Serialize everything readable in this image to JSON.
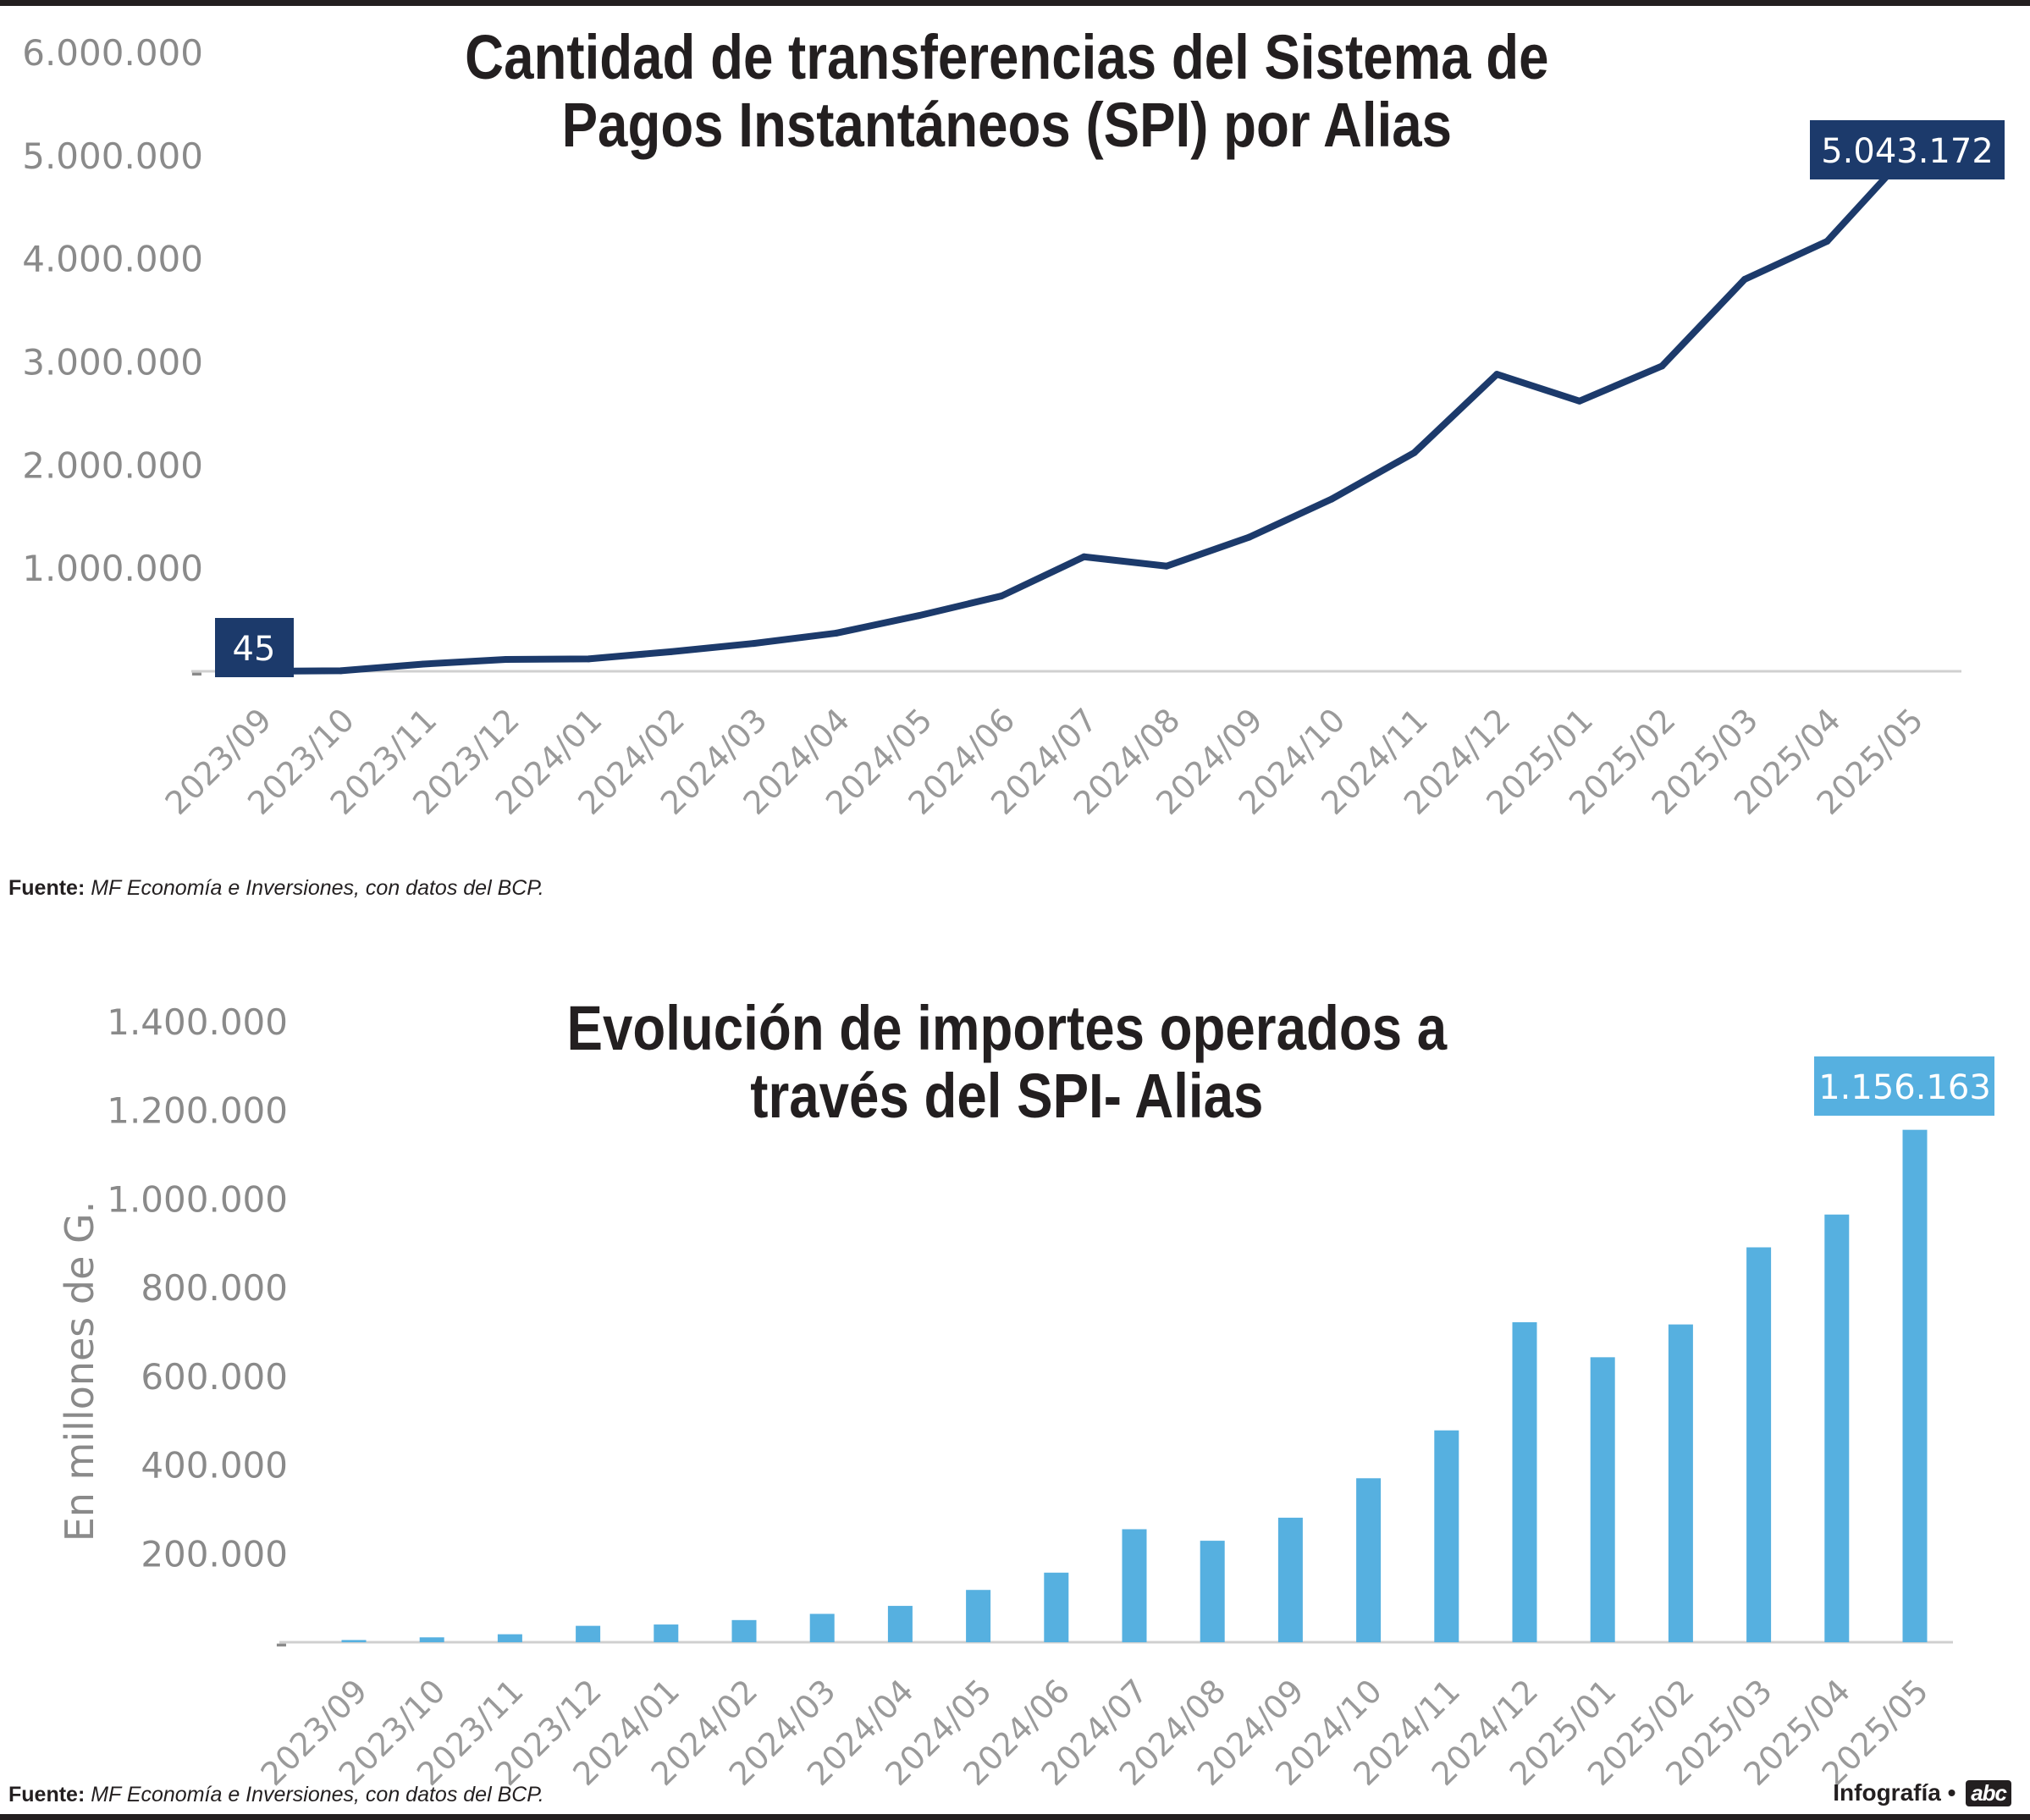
{
  "charts": [
    {
      "title_lines": [
        "Cantidad de transferencias del Sistema de",
        "Pagos Instantáneos (SPI) por Alias"
      ],
      "source_label": "Fuente:",
      "source_text": "MF Economía e Inversiones, con datos del BCP."
    },
    {
      "title_lines": [
        "Evolución de importes operados a",
        "través del SPI- Alias"
      ],
      "source_label": "Fuente:",
      "source_text": "MF Economía e Inversiones, con datos del BCP."
    }
  ],
  "credit": {
    "label": "Infografía •",
    "logo": "abc"
  },
  "chart_data": [
    {
      "type": "line",
      "title": "Cantidad de transferencias del Sistema de Pagos Instantáneos (SPI) por Alias",
      "x": [
        "2023/09",
        "2023/10",
        "2023/11",
        "2023/12",
        "2024/01",
        "2024/02",
        "2024/03",
        "2024/04",
        "2024/05",
        "2024/06",
        "2024/07",
        "2024/08",
        "2024/09",
        "2024/10",
        "2024/11",
        "2024/12",
        "2025/01",
        "2025/02",
        "2025/03",
        "2025/04",
        "2025/05"
      ],
      "values": [
        45,
        5000,
        70000,
        115000,
        120000,
        190000,
        270000,
        370000,
        540000,
        730000,
        1110000,
        1020000,
        1300000,
        1670000,
        2120000,
        2880000,
        2620000,
        2960000,
        3800000,
        4170000,
        5043172
      ],
      "ylim": [
        0,
        6000000
      ],
      "yticks": [
        0,
        1000000,
        2000000,
        3000000,
        4000000,
        5000000,
        6000000
      ],
      "ytick_labels": [
        "-",
        "1.000.000",
        "2.000.000",
        "3.000.000",
        "4.000.000",
        "5.000.000",
        "6.000.000"
      ],
      "annotations": [
        {
          "index": 0,
          "text": "45"
        },
        {
          "index": 20,
          "text": "5.043.172"
        }
      ],
      "color": "#1c3a6b",
      "xlabel": "",
      "ylabel": "",
      "grid": false
    },
    {
      "type": "bar",
      "title": "Evolución de importes operados a través del SPI- Alias",
      "categories": [
        "2023/09",
        "2023/10",
        "2023/11",
        "2023/12",
        "2024/01",
        "2024/02",
        "2024/03",
        "2024/04",
        "2024/05",
        "2024/06",
        "2024/07",
        "2024/08",
        "2024/09",
        "2024/10",
        "2024/11",
        "2024/12",
        "2025/01",
        "2025/02",
        "2025/03",
        "2025/04",
        "2025/05"
      ],
      "values": [
        5000,
        11000,
        18000,
        37000,
        40000,
        50000,
        64000,
        82000,
        118000,
        157000,
        255000,
        229000,
        281000,
        370000,
        478000,
        722000,
        643000,
        717000,
        891000,
        965000,
        1156163
      ],
      "ylim": [
        0,
        1400000
      ],
      "yticks": [
        0,
        200000,
        400000,
        600000,
        800000,
        1000000,
        1200000,
        1400000
      ],
      "ytick_labels": [
        "-",
        "200.000",
        "400.000",
        "600.000",
        "800.000",
        "1.000.000",
        "1.200.000",
        "1.400.000"
      ],
      "annotations": [
        {
          "index": 20,
          "text": "1.156.163"
        }
      ],
      "ylabel": "En millones de G.",
      "xlabel": "",
      "color": "#56b0e0",
      "grid": false
    }
  ]
}
